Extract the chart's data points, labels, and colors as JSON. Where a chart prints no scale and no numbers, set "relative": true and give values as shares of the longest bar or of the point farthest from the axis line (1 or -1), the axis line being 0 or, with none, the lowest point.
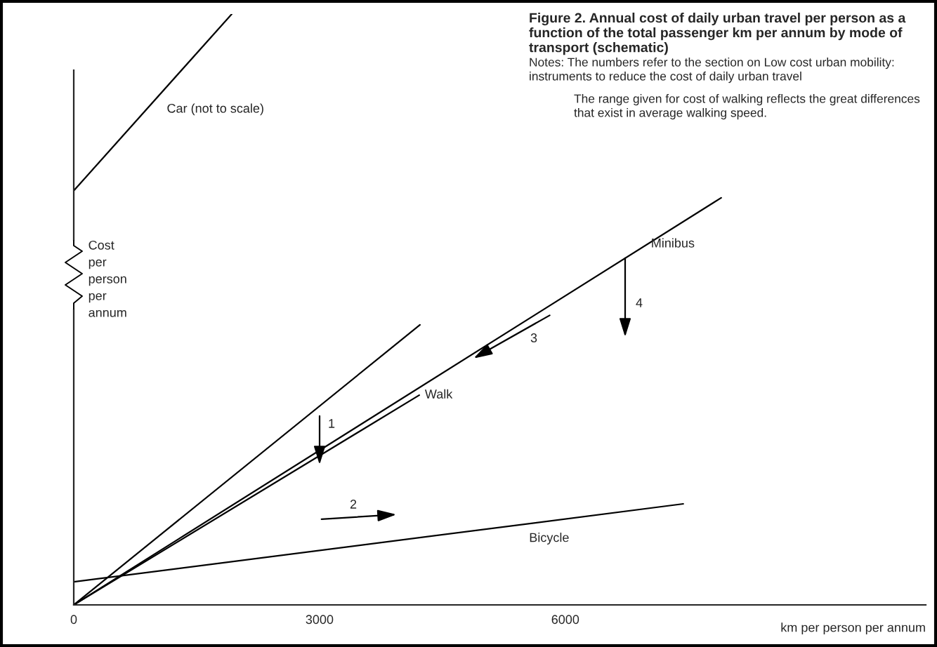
{
  "chart_data": {
    "type": "line",
    "title": "Figure 2. Annual cost of daily urban travel per person as a function of the total passenger km per annum by mode of transport (schematic)",
    "xlabel": "km per person per annum",
    "ylabel": "Cost per person per annum",
    "relative": true,
    "xlim": [
      0,
      10400
    ],
    "xticks": [
      0,
      3000,
      6000
    ],
    "grid": false,
    "series": [
      {
        "name": "Car (not to scale)",
        "color": "#000000",
        "x": [
          0,
          1929
        ],
        "values": [
          0.701,
          1.0
        ]
      },
      {
        "color": "#000000",
        "x": [
          0,
          4226
        ],
        "values": [
          0,
          0.474
        ]
      },
      {
        "name": "Minibus",
        "color": "#000000",
        "x": [
          0,
          7903
        ],
        "values": [
          0,
          0.689
        ]
      },
      {
        "name": "Walk",
        "color": "#000000",
        "x": [
          0,
          4217
        ],
        "values": [
          0,
          0.355
        ]
      },
      {
        "name": "Bicycle",
        "color": "#000000",
        "x": [
          0,
          7440
        ],
        "values": [
          0.039,
          0.171
        ]
      }
    ],
    "annotations": [
      "1",
      "2",
      "3",
      "4",
      "Notes: The numbers refer to the section on Low cost urban mobility: instruments to reduce the cost of daily urban travel",
      "The range given for cost of walking reflects the great differences that exist in average walking speed."
    ]
  }
}
